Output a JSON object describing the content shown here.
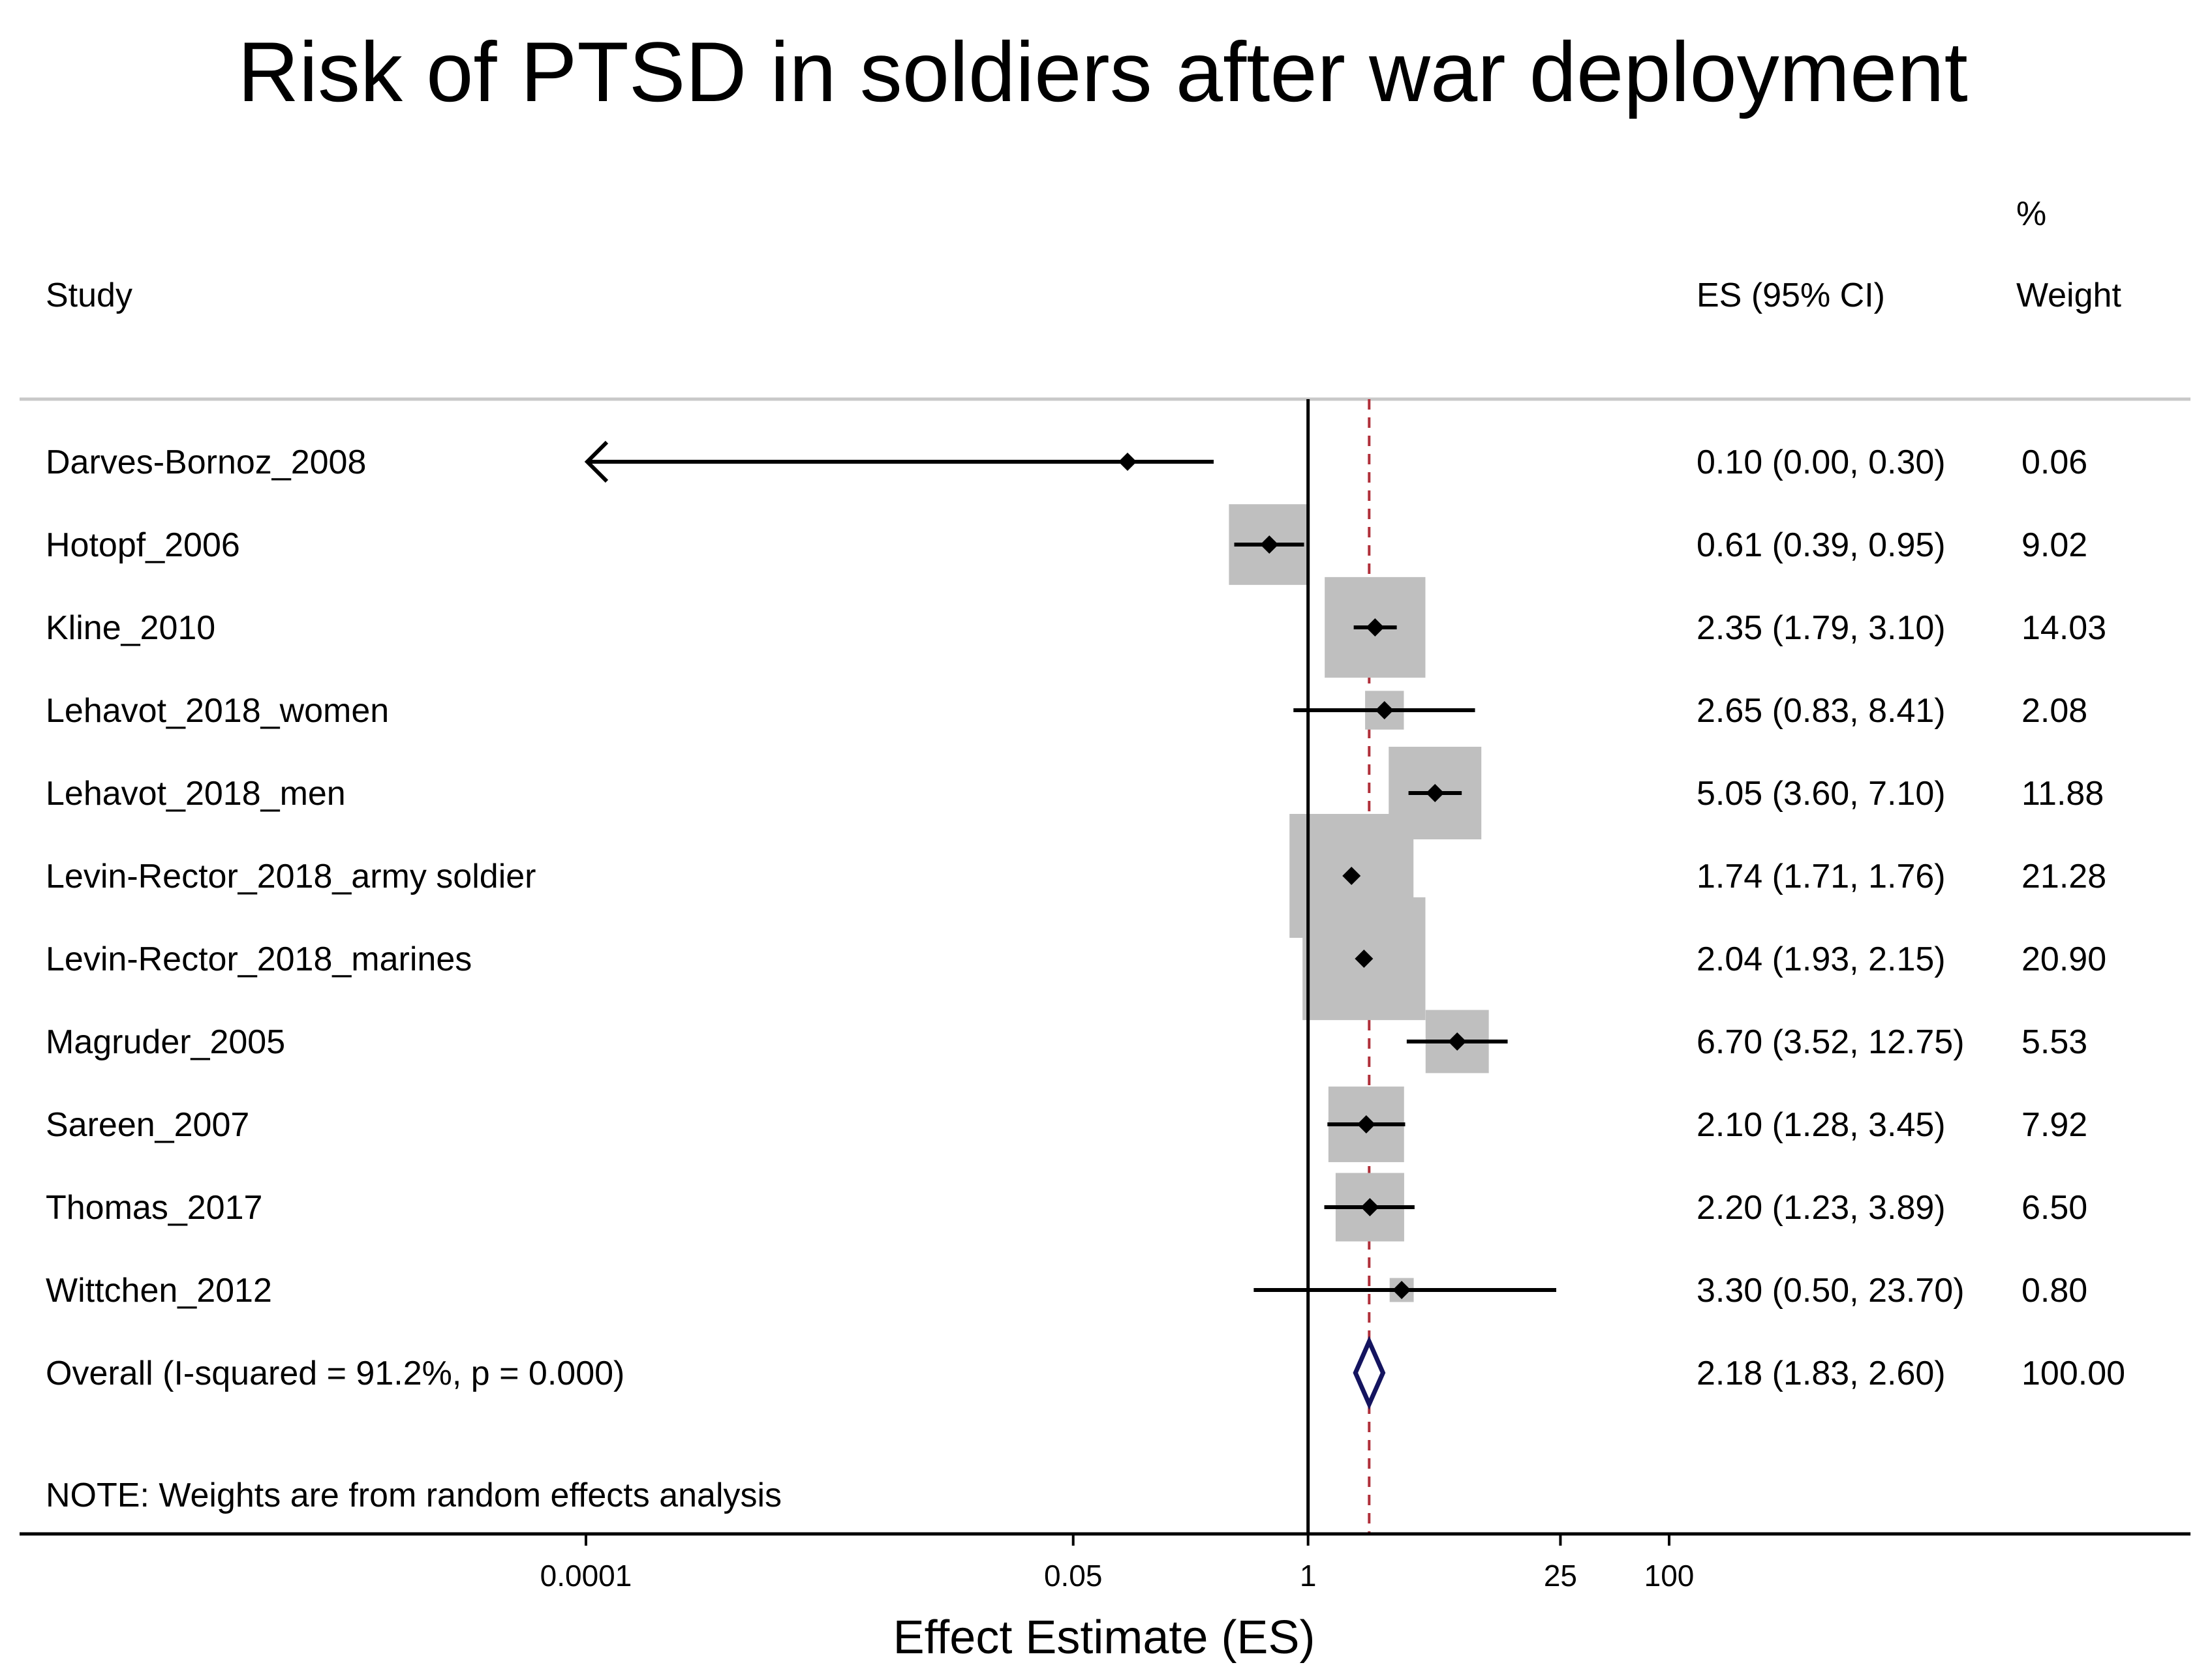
{
  "chart_data": {
    "type": "forest",
    "title": "Risk of PTSD in soldiers after war deployment",
    "headers": {
      "study": "Study",
      "es": "ES (95% CI)",
      "weight_top": "%",
      "weight_bottom": "Weight"
    },
    "xscale": "log",
    "xlim": [
      5e-07,
      600
    ],
    "xticks": [
      {
        "value": 0.0001,
        "label": "0.0001"
      },
      {
        "value": 0.05,
        "label": "0.05"
      },
      {
        "value": 1,
        "label": "1"
      },
      {
        "value": 25,
        "label": "25"
      },
      {
        "value": 100,
        "label": "100"
      }
    ],
    "xlabel": "Effect Estimate (ES)",
    "null_line": 1,
    "studies": [
      {
        "name": "Darves-Bornoz_2008",
        "es": 0.1,
        "lower": 0.0,
        "upper": 0.3,
        "weight": 0.06,
        "es_text": "0.10 (0.00, 0.30)",
        "weight_text": "0.06",
        "arrow_left": true
      },
      {
        "name": "Hotopf_2006",
        "es": 0.61,
        "lower": 0.39,
        "upper": 0.95,
        "weight": 9.02,
        "es_text": "0.61 (0.39, 0.95)",
        "weight_text": "9.02"
      },
      {
        "name": "Kline_2010",
        "es": 2.35,
        "lower": 1.79,
        "upper": 3.1,
        "weight": 14.03,
        "es_text": "2.35 (1.79, 3.10)",
        "weight_text": "14.03"
      },
      {
        "name": "Lehavot_2018_women",
        "es": 2.65,
        "lower": 0.83,
        "upper": 8.41,
        "weight": 2.08,
        "es_text": "2.65 (0.83, 8.41)",
        "weight_text": "2.08"
      },
      {
        "name": "Lehavot_2018_men",
        "es": 5.05,
        "lower": 3.6,
        "upper": 7.1,
        "weight": 11.88,
        "es_text": "5.05 (3.60, 7.10)",
        "weight_text": "11.88"
      },
      {
        "name": "Levin-Rector_2018_army soldier",
        "es": 1.74,
        "lower": 1.71,
        "upper": 1.76,
        "weight": 21.28,
        "es_text": "1.74 (1.71, 1.76)",
        "weight_text": "21.28"
      },
      {
        "name": "Levin-Rector_2018_marines",
        "es": 2.04,
        "lower": 1.93,
        "upper": 2.15,
        "weight": 20.9,
        "es_text": "2.04 (1.93, 2.15)",
        "weight_text": "20.90"
      },
      {
        "name": "Magruder_2005",
        "es": 6.7,
        "lower": 3.52,
        "upper": 12.75,
        "weight": 5.53,
        "es_text": "6.70 (3.52, 12.75)",
        "weight_text": "5.53"
      },
      {
        "name": "Sareen_2007",
        "es": 2.1,
        "lower": 1.28,
        "upper": 3.45,
        "weight": 7.92,
        "es_text": "2.10 (1.28, 3.45)",
        "weight_text": "7.92"
      },
      {
        "name": "Thomas_2017",
        "es": 2.2,
        "lower": 1.23,
        "upper": 3.89,
        "weight": 6.5,
        "es_text": "2.20 (1.23, 3.89)",
        "weight_text": "6.50"
      },
      {
        "name": "Wittchen_2012",
        "es": 3.3,
        "lower": 0.5,
        "upper": 23.7,
        "weight": 0.8,
        "es_text": "3.30 (0.50, 23.70)",
        "weight_text": "0.80"
      }
    ],
    "overall": {
      "label": "Overall  (I-squared = 91.2%, p = 0.000)",
      "es": 2.18,
      "lower": 1.83,
      "upper": 2.6,
      "es_text": "2.18 (1.83, 2.60)",
      "weight_text": "100.00"
    },
    "note": "NOTE: Weights are from random effects analysis",
    "colors": {
      "box": "#bfbfbf",
      "marker": "#000000",
      "overall_diamond": "#14145f",
      "overall_line": "#b0303a",
      "separator": "#c8c8c8"
    }
  }
}
